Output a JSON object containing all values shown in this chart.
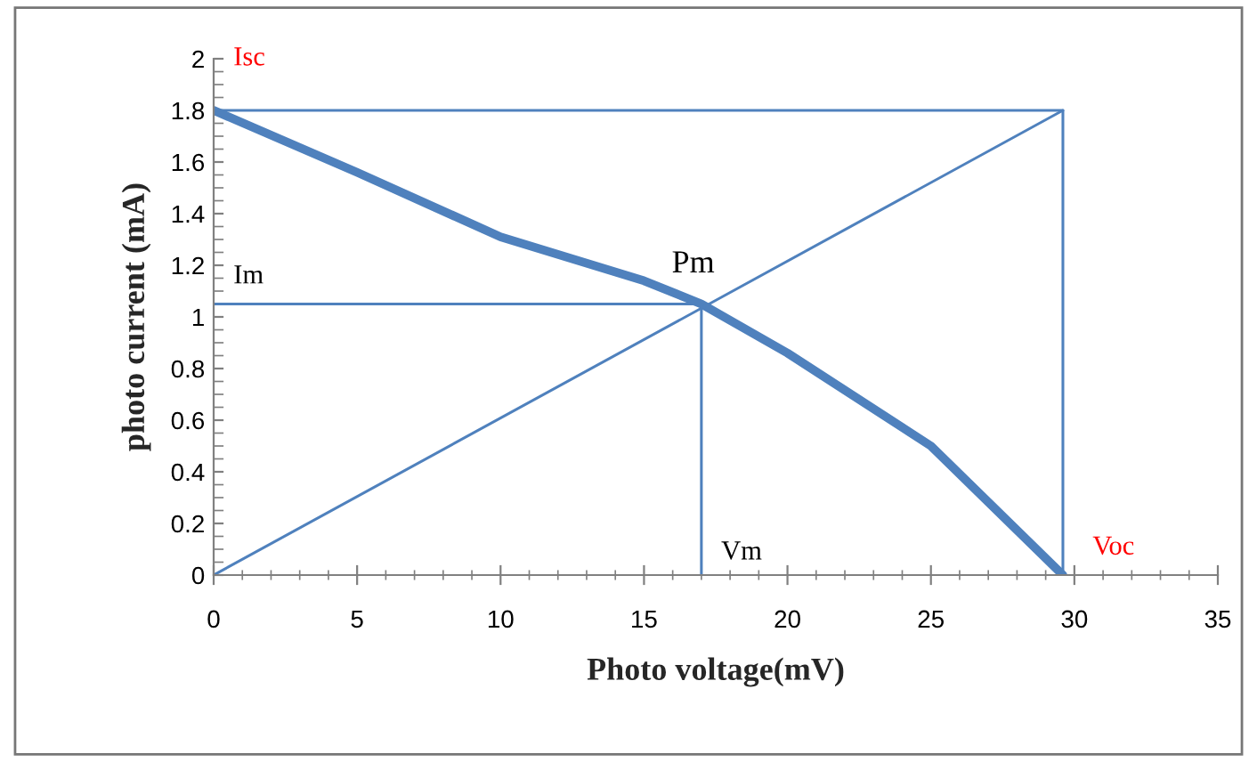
{
  "chart_data": {
    "type": "line",
    "xlabel": "Photo voltage(mV)",
    "ylabel": "photo current (mA)",
    "xlim": [
      0,
      35
    ],
    "xticks": [
      0,
      5,
      10,
      15,
      20,
      25,
      30,
      35
    ],
    "ylim": [
      0,
      2
    ],
    "yticks": [
      0,
      0.2,
      0.4,
      0.6,
      0.8,
      1,
      1.2,
      1.4,
      1.6,
      1.8,
      2
    ],
    "grid": false,
    "legend": false,
    "marker": "none",
    "line_style": "solid",
    "series": [
      {
        "color": "#4f81bd",
        "x": [
          0,
          5,
          10,
          15,
          17,
          20,
          25,
          29.6
        ],
        "values": [
          1.8,
          1.56,
          1.31,
          1.14,
          1.05,
          0.86,
          0.5,
          0
        ]
      },
      {
        "color": "#4f81bd",
        "x": [
          0,
          29.6,
          29.6
        ],
        "values": [
          1.8,
          1.8,
          0
        ]
      },
      {
        "color": "#4f81bd",
        "x": [
          0,
          29.6
        ],
        "values": [
          0,
          1.8
        ]
      },
      {
        "color": "#4f81bd",
        "x": [
          0,
          17,
          17
        ],
        "values": [
          1.05,
          1.05,
          0
        ]
      }
    ],
    "annotations": [
      "Isc",
      {
        "text": "Im",
        "x": 0,
        "y": 1.05
      },
      {
        "text": "Pm",
        "x": 17,
        "y": 1.05
      },
      {
        "text": "Vm",
        "x": 17,
        "y": 0
      },
      {
        "text": "Voc",
        "x": 29.6,
        "y": 0
      }
    ]
  }
}
